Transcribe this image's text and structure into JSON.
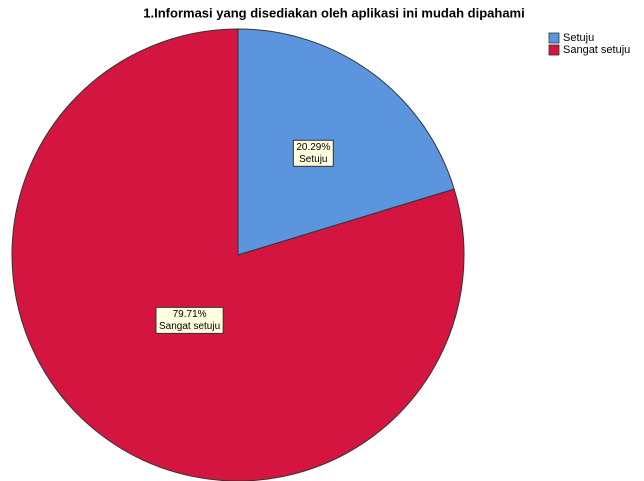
{
  "chart_data": {
    "type": "pie",
    "title": "1.Informasi yang disediakan oleh aplikasi ini mudah dipahami",
    "categories": [
      "Setuju",
      "Sangat setuju"
    ],
    "values": [
      20.29,
      79.71
    ],
    "value_labels": [
      "20.29%",
      "79.71%"
    ],
    "colors": [
      "#5b95de",
      "#d4153f"
    ],
    "legend": "top-right"
  }
}
